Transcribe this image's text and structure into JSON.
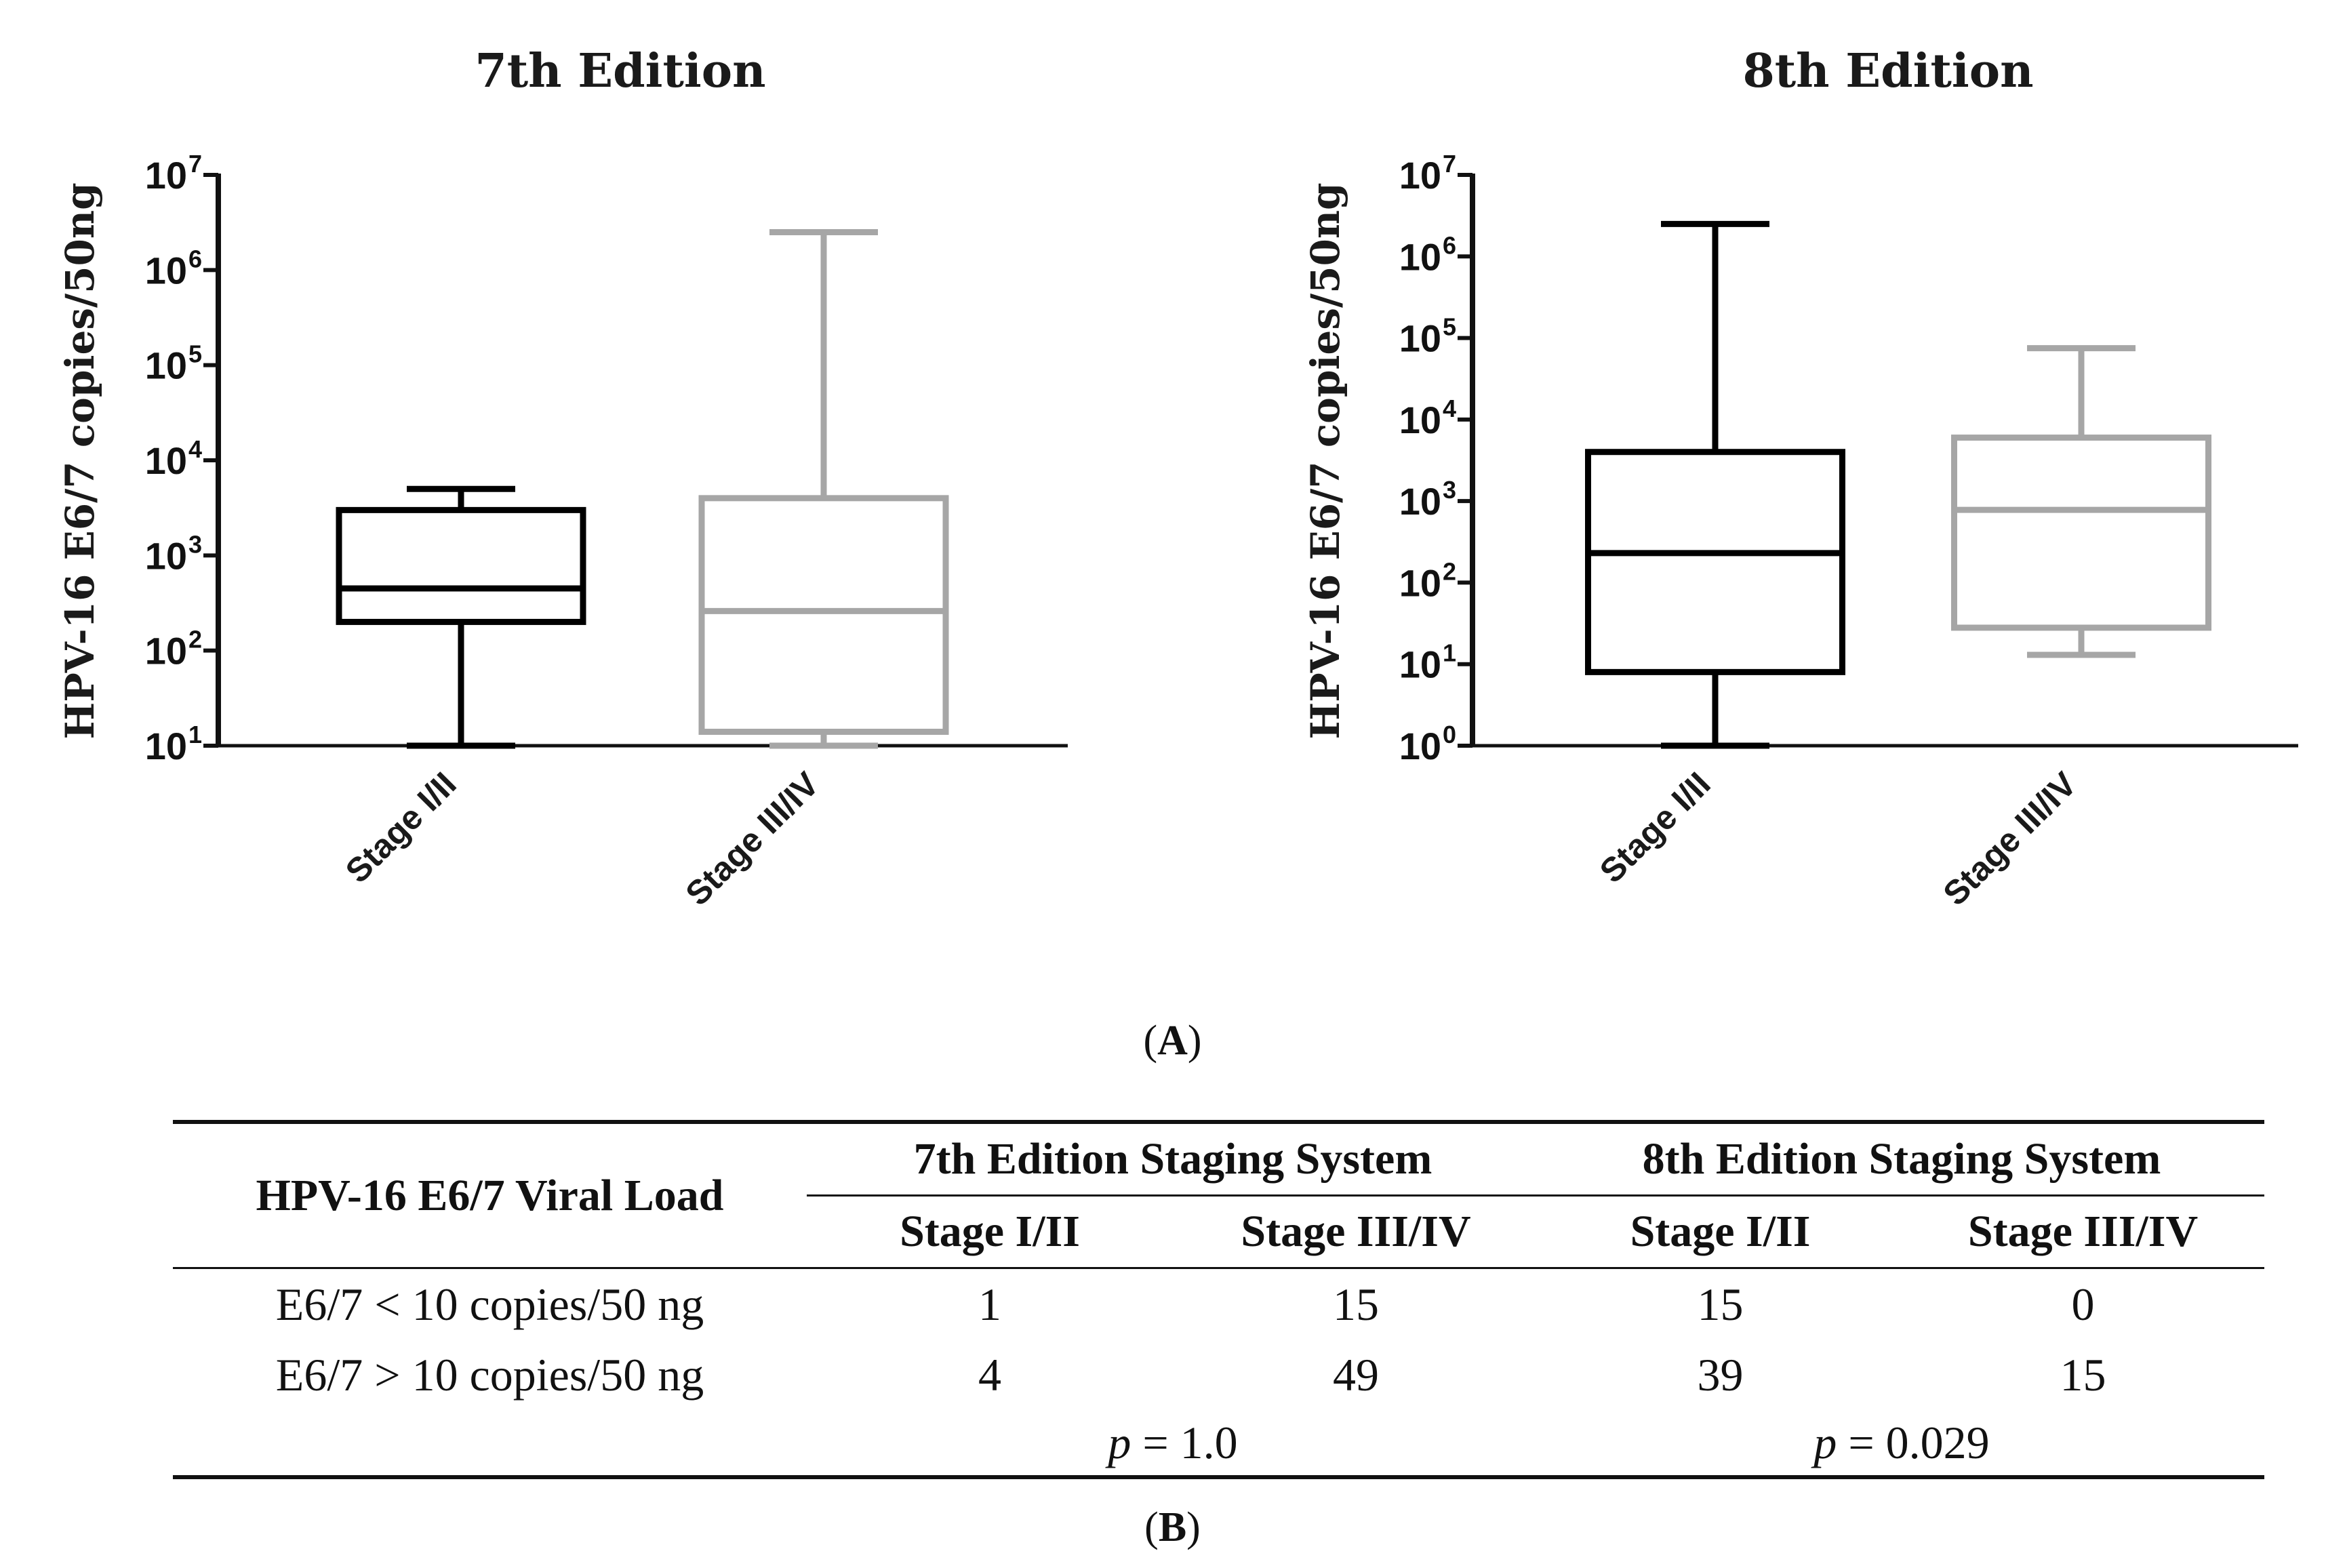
{
  "chart_data": [
    {
      "type": "boxplot",
      "title": "7th Edition",
      "ylabel": "HPV-16 E6/7 copies/50ng",
      "yscale": "log10",
      "ylim": [
        10,
        10000000
      ],
      "y_tick_exponents": [
        1,
        2,
        3,
        4,
        5,
        6,
        7
      ],
      "categories": [
        "Stage I/II",
        "Stage III/IV"
      ],
      "series": [
        {
          "name": "Stage I/II",
          "color": "#000000",
          "min": 10,
          "q1": 200,
          "median": 450,
          "q3": 3000,
          "max": 5000
        },
        {
          "name": "Stage III/IV",
          "color": "#a6a6a6",
          "min": 10,
          "q1": 14,
          "median": 260,
          "q3": 4000,
          "max": 2500000
        }
      ]
    },
    {
      "type": "boxplot",
      "title": "8th Edition",
      "ylabel": "HPV-16 E6/7 copies/50ng",
      "yscale": "log10",
      "ylim": [
        1,
        10000000
      ],
      "y_tick_exponents": [
        0,
        1,
        2,
        3,
        4,
        5,
        6,
        7
      ],
      "categories": [
        "Stage I/II",
        "Stage III/IV"
      ],
      "series": [
        {
          "name": "Stage I/II",
          "color": "#000000",
          "min": 1,
          "q1": 8,
          "median": 230,
          "q3": 4000,
          "max": 2500000
        },
        {
          "name": "Stage III/IV",
          "color": "#a6a6a6",
          "min": 13,
          "q1": 28,
          "median": 780,
          "q3": 6000,
          "max": 75000
        }
      ]
    }
  ],
  "panel_a_label": "A",
  "panel_b_label": "B",
  "table": {
    "row_header": "HPV-16 E6/7 Viral Load",
    "group_7": "7th Edition Staging System",
    "group_8": "8th Edition Staging System",
    "sub_headers": [
      "Stage I/II",
      "Stage III/IV",
      "Stage I/II",
      "Stage III/IV"
    ],
    "rows": [
      {
        "label": "E6/7 < 10 copies/50 ng",
        "values": [
          "1",
          "15",
          "15",
          "0"
        ]
      },
      {
        "label": "E6/7 > 10 copies/50 ng",
        "values": [
          "4",
          "49",
          "39",
          "15"
        ]
      }
    ],
    "p_symbol": "p",
    "p7": "= 1.0",
    "p8": "= 0.029"
  }
}
